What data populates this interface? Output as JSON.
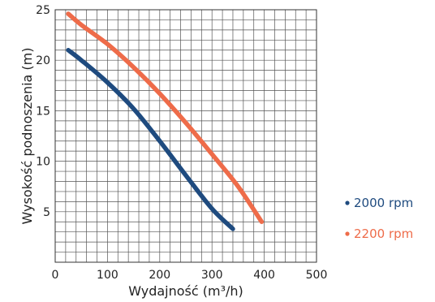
{
  "chart_data": {
    "type": "line",
    "xlabel": "Wydajność (m³/h)",
    "ylabel": "Wysokość podnoszenia (m)",
    "xlim": [
      0,
      500
    ],
    "ylim": [
      0,
      25
    ],
    "x_ticks": [
      0,
      100,
      200,
      300,
      400,
      500
    ],
    "y_ticks": [
      5,
      10,
      15,
      20,
      25
    ],
    "grid": true,
    "legend": "right",
    "series": [
      {
        "name": "2000 rpm",
        "color": "#1f4b7f",
        "x": [
          25,
          50,
          100,
          150,
          200,
          250,
          300,
          340
        ],
        "y": [
          21.0,
          20.0,
          17.8,
          15.2,
          12.0,
          8.6,
          5.3,
          3.3
        ]
      },
      {
        "name": "2200 rpm",
        "color": "#ee6c4a",
        "x": [
          25,
          50,
          100,
          150,
          200,
          250,
          300,
          350,
          395
        ],
        "y": [
          24.6,
          23.5,
          21.6,
          19.3,
          16.7,
          13.8,
          10.7,
          7.5,
          4.0
        ]
      }
    ]
  }
}
